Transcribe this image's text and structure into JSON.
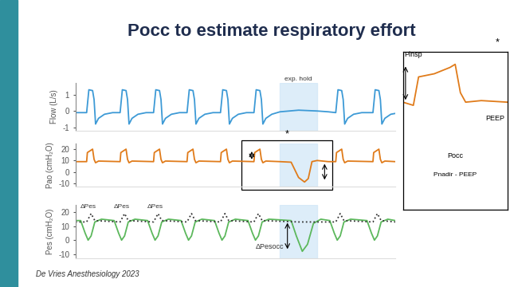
{
  "slide": {
    "title": "Pocc to estimate respiratory effort",
    "citation": "De Vries Anesthesiology 2023",
    "exp_hold": {
      "label": "exp. hold",
      "x": [
        275,
        325
      ]
    }
  },
  "chart_data": [
    {
      "type": "line",
      "y_label": "Flow (L/s)",
      "xlim": [
        0,
        430
      ],
      "ylim": [
        -1.2,
        1.7
      ],
      "yticks": [
        -1,
        0,
        1
      ],
      "tick_labels": "y",
      "series": [
        {
          "color": "#3d9ad6",
          "x": [
            0,
            15,
            18,
            23,
            25,
            27,
            31,
            39,
            50,
            60,
            63,
            68,
            70,
            72,
            76,
            84,
            95,
            105,
            108,
            113,
            115,
            117,
            121,
            129,
            140,
            150,
            153,
            158,
            160,
            162,
            166,
            174,
            185,
            195,
            198,
            203,
            205,
            207,
            211,
            219,
            230,
            240,
            243,
            248,
            250,
            252,
            256,
            264,
            275,
            300,
            325,
            340,
            350,
            353,
            358,
            360,
            362,
            366,
            374,
            385,
            400,
            403,
            408,
            410,
            412,
            416,
            424,
            430
          ],
          "values": [
            -0.1,
            -0.1,
            1.3,
            1.25,
            0.7,
            -0.8,
            -0.45,
            -0.2,
            -0.1,
            -0.1,
            1.3,
            1.25,
            0.7,
            -0.8,
            -0.45,
            -0.2,
            -0.1,
            -0.1,
            1.3,
            1.25,
            0.7,
            -0.8,
            -0.45,
            -0.2,
            -0.1,
            -0.1,
            1.3,
            1.25,
            0.7,
            -0.8,
            -0.45,
            -0.2,
            -0.1,
            -0.1,
            1.3,
            1.25,
            0.7,
            -0.8,
            -0.45,
            -0.2,
            -0.1,
            -0.1,
            1.3,
            1.25,
            0.7,
            -0.8,
            -0.45,
            -0.2,
            -0.05,
            0.05,
            0.0,
            -0.05,
            -0.1,
            1.3,
            1.25,
            0.7,
            -0.8,
            -0.45,
            -0.2,
            -0.1,
            -0.1,
            1.3,
            1.25,
            0.7,
            -0.8,
            -0.45,
            -0.2,
            -0.15
          ]
        }
      ]
    },
    {
      "type": "line",
      "y_label": "Pao (cmH₂O)",
      "xlim": [
        0,
        430
      ],
      "ylim": [
        -13,
        25
      ],
      "yticks": [
        -10,
        0,
        10,
        20
      ],
      "tick_labels": "y",
      "annotations": [
        {
          "text": "*"
        }
      ],
      "series": [
        {
          "color": "#e07b1a",
          "x": [
            0,
            15,
            16,
            23,
            25,
            27,
            31,
            60,
            61,
            68,
            70,
            72,
            76,
            105,
            106,
            113,
            115,
            117,
            121,
            150,
            151,
            158,
            160,
            162,
            166,
            195,
            196,
            203,
            205,
            207,
            211,
            240,
            241,
            248,
            250,
            252,
            256,
            275,
            290,
            300,
            308,
            313,
            318,
            325,
            340,
            350,
            351,
            358,
            360,
            362,
            366,
            400,
            401,
            408,
            410,
            412,
            416,
            430
          ],
          "values": [
            9,
            9,
            17,
            20,
            11,
            8,
            9.5,
            9,
            17,
            20,
            11,
            8,
            9.5,
            9,
            17,
            20,
            11,
            8,
            9.5,
            9,
            17,
            20,
            11,
            8,
            9.5,
            9,
            17,
            20,
            11,
            8,
            9.5,
            9,
            17,
            20,
            11,
            8,
            9.5,
            9,
            8.5,
            -5,
            -9,
            -6,
            9,
            10,
            9,
            9,
            17,
            20,
            11,
            8,
            9.5,
            9,
            17,
            20,
            11,
            8,
            9.5,
            9
          ]
        }
      ]
    },
    {
      "type": "line",
      "y_label": "Pes (cmH₂O)",
      "xlim": [
        0,
        430
      ],
      "ylim": [
        -13,
        25
      ],
      "yticks": [
        -10,
        0,
        10,
        20
      ],
      "tick_labels": "y",
      "annotations": [
        {
          "text": "ΔPes",
          "x": 17,
          "y": 22
        },
        {
          "text": "ΔPes",
          "x": 62,
          "y": 22
        },
        {
          "text": "ΔPes",
          "x": 107,
          "y": 22
        },
        {
          "text": "ΔPesocc",
          "x": 280,
          "y": -5
        }
      ],
      "series": [
        {
          "color": "#5cb85c",
          "line_style": "solid",
          "x": [
            0,
            7,
            13,
            17,
            21,
            26,
            35,
            52,
            58,
            62,
            66,
            71,
            80,
            97,
            103,
            107,
            111,
            116,
            125,
            142,
            148,
            152,
            156,
            161,
            170,
            187,
            193,
            197,
            201,
            206,
            215,
            232,
            238,
            242,
            246,
            251,
            260,
            290,
            297,
            305,
            312,
            320,
            330,
            342,
            348,
            352,
            356,
            361,
            370,
            392,
            398,
            402,
            406,
            411,
            420,
            430
          ],
          "values": [
            14,
            14,
            5,
            0,
            3,
            13,
            15,
            14,
            5,
            0,
            3,
            13,
            15,
            14,
            5,
            0,
            3,
            13,
            15,
            14,
            5,
            0,
            3,
            13,
            15,
            14,
            5,
            0,
            3,
            13,
            15,
            14,
            5,
            0,
            3,
            13,
            15,
            14,
            3,
            -8,
            -3,
            12,
            15,
            14,
            5,
            0,
            3,
            13,
            15,
            14,
            5,
            0,
            3,
            13,
            15,
            14
          ]
        },
        {
          "color": "#333333",
          "line_style": "dotted",
          "x": [
            0,
            15,
            21,
            26,
            60,
            66,
            71,
            105,
            111,
            116,
            150,
            156,
            161,
            195,
            201,
            206,
            240,
            246,
            251,
            300,
            350,
            356,
            361,
            400,
            406,
            411,
            430
          ],
          "values": [
            13,
            13,
            19,
            14,
            13,
            19,
            14,
            13,
            19,
            14,
            13,
            19,
            14,
            13,
            19,
            14,
            13,
            19,
            14,
            13,
            13,
            19,
            14,
            13,
            19,
            14,
            13
          ]
        }
      ]
    },
    {
      "type": "line",
      "xlim": [
        0,
        20
      ],
      "ylim": [
        -25,
        25
      ],
      "tick_labels": false,
      "annotations": [
        {
          "text": "*"
        },
        {
          "text": "Pinsp"
        },
        {
          "text": "PEEP"
        },
        {
          "text": "Pocc"
        },
        {
          "text": "Pnadir - PEEP"
        }
      ],
      "series": [
        {
          "color": "#e07b1a",
          "x": [
            0,
            2,
            3,
            6,
            9,
            10,
            11,
            12,
            15,
            20
          ],
          "values": [
            9,
            8,
            17,
            18,
            20,
            21,
            12,
            9,
            9.5,
            9
          ]
        }
      ]
    }
  ]
}
